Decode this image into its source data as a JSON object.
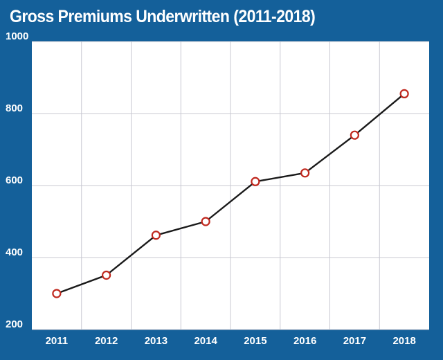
{
  "title": "Gross Premiums Underwritten (2011-2018)",
  "colors": {
    "background": "#14609a",
    "plot_area": "#ffffff",
    "grid": "#c8c8d2",
    "line": "#1a1a1a",
    "marker_stroke": "#c0281e",
    "marker_fill": "#ffffff",
    "tick_text": "#ffffff"
  },
  "chart_data": {
    "type": "line",
    "title": "Gross Premiums Underwritten (2011-2018)",
    "xlabel": "",
    "ylabel": "",
    "categories": [
      "2011",
      "2012",
      "2013",
      "2014",
      "2015",
      "2016",
      "2017",
      "2018"
    ],
    "series": [
      {
        "values": [
          300,
          351,
          462,
          500,
          611,
          635,
          740,
          855
        ]
      }
    ],
    "ylim": [
      200,
      1000
    ],
    "yticks": [
      "200",
      "400",
      "600",
      "800",
      "1000"
    ],
    "grid": true,
    "legend": "none",
    "marker": "open-circle"
  }
}
